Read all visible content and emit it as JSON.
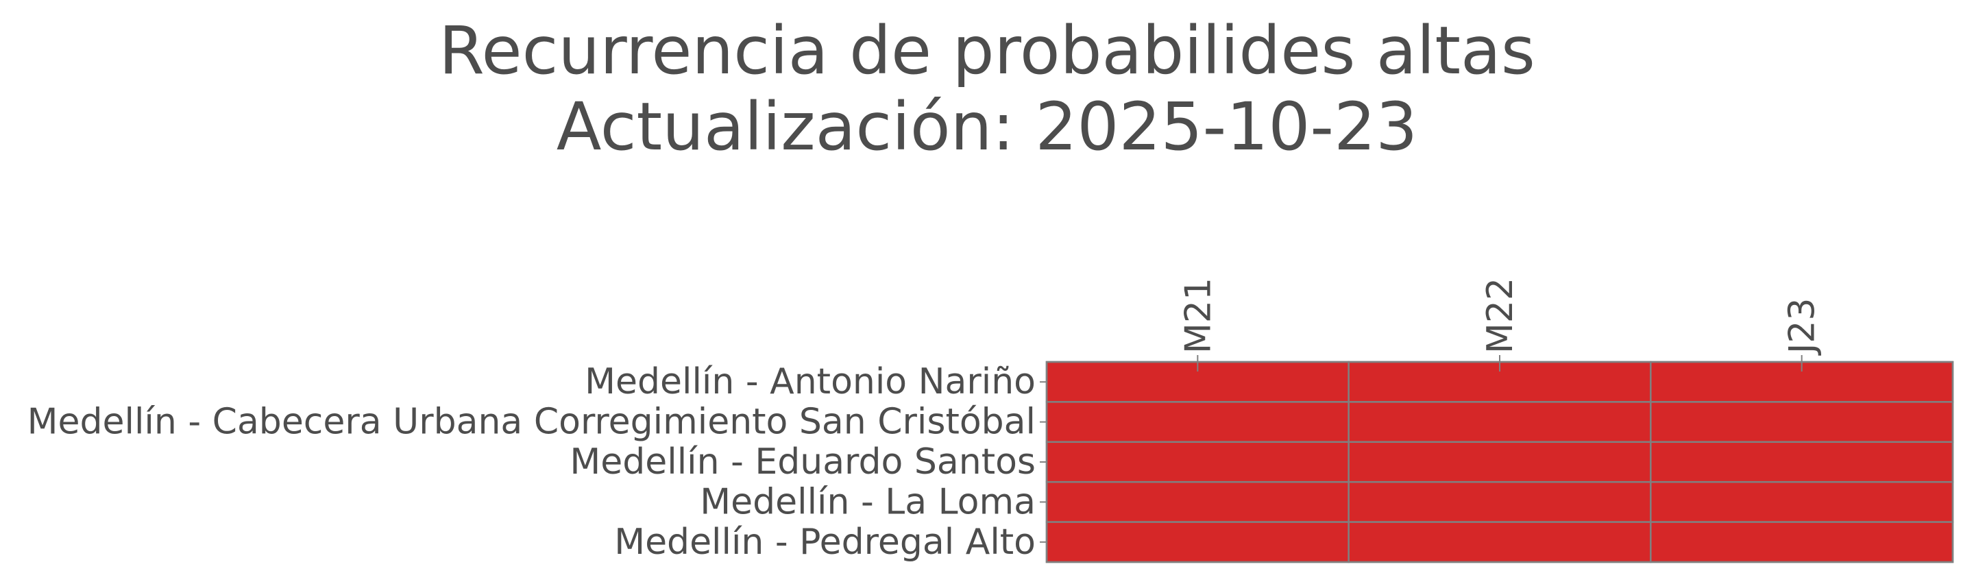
{
  "chart_data": {
    "type": "heatmap",
    "title": "Recurrencia de probabilides altas",
    "subtitle": "Actualización: 2025-10-23",
    "xlabel": "",
    "ylabel": "",
    "columns": [
      "M21",
      "M22",
      "J23"
    ],
    "rows": [
      "Medellín - Antonio Nariño",
      "Medellín - Cabecera Urbana Corregimiento San Cristóbal",
      "Medellín - Eduardo Santos",
      "Medellín - La Loma",
      "Medellín - Pedregal Alto"
    ],
    "values": [
      [
        1,
        1,
        1
      ],
      [
        1,
        1,
        1
      ],
      [
        1,
        1,
        1
      ],
      [
        1,
        1,
        1
      ],
      [
        1,
        1,
        1
      ]
    ],
    "cell_color": "#d62728",
    "grid_color": "#808080",
    "legend": "none"
  }
}
